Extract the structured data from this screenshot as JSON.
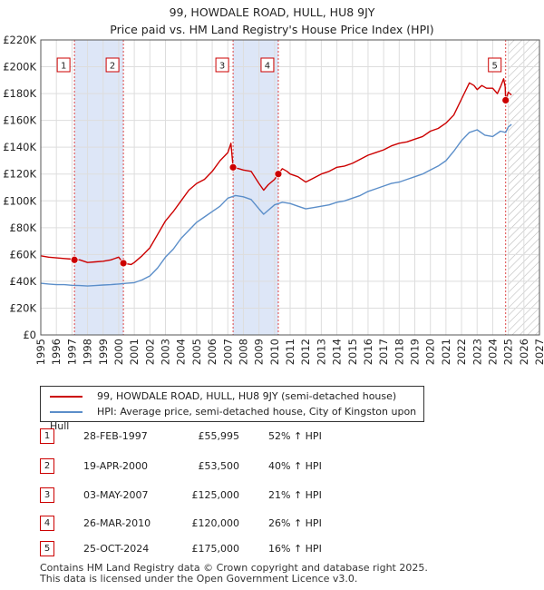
{
  "title": {
    "line1": "99, HOWDALE ROAD, HULL, HU8 9JY",
    "line2": "Price paid vs. HM Land Registry's House Price Index (HPI)"
  },
  "chart_data": {
    "type": "line",
    "title": "99, HOWDALE ROAD, HULL, HU8 9JY — Price paid vs. HM Land Registry's House Price Index (HPI)",
    "xlabel": "",
    "ylabel": "",
    "xlim": [
      1995,
      2027
    ],
    "ylim": [
      0,
      220000
    ],
    "x_ticks": [
      1995,
      1996,
      1997,
      1998,
      1999,
      2000,
      2001,
      2002,
      2003,
      2004,
      2005,
      2006,
      2007,
      2008,
      2009,
      2010,
      2011,
      2012,
      2013,
      2014,
      2015,
      2016,
      2017,
      2018,
      2019,
      2020,
      2021,
      2022,
      2023,
      2024,
      2025,
      2026,
      2027
    ],
    "y_ticks": [
      0,
      20000,
      40000,
      60000,
      80000,
      100000,
      120000,
      140000,
      160000,
      180000,
      200000,
      220000
    ],
    "y_tick_labels": [
      "£0",
      "£20K",
      "£40K",
      "£60K",
      "£80K",
      "£100K",
      "£120K",
      "£140K",
      "£160K",
      "£180K",
      "£200K",
      "£220K"
    ],
    "grid": true,
    "colors": {
      "property": "#cc0000",
      "hpi": "#5b8ec9",
      "shade": "#dde6f7",
      "marker_line": "#dd4444",
      "hatch": "#bbbbbb"
    },
    "shaded_periods": [
      [
        1997.16,
        2000.3
      ],
      [
        2007.34,
        2010.24
      ]
    ],
    "future_hatch_from": 2025.0,
    "series": [
      {
        "name": "99, HOWDALE ROAD, HULL, HU8 9JY (semi-detached house)",
        "color": "#cc0000",
        "x": [
          1995.0,
          1995.5,
          1996.0,
          1996.5,
          1997.0,
          1997.16,
          1997.5,
          1998.0,
          1998.5,
          1999.0,
          1999.5,
          2000.0,
          2000.3,
          2000.8,
          2001.0,
          2001.5,
          2002.0,
          2002.5,
          2003.0,
          2003.5,
          2004.0,
          2004.5,
          2005.0,
          2005.5,
          2006.0,
          2006.5,
          2007.0,
          2007.2,
          2007.34,
          2007.7,
          2008.0,
          2008.5,
          2009.0,
          2009.3,
          2009.6,
          2010.0,
          2010.24,
          2010.5,
          2010.8,
          2011.0,
          2011.5,
          2012.0,
          2012.5,
          2013.0,
          2013.5,
          2014.0,
          2014.5,
          2015.0,
          2015.5,
          2016.0,
          2016.5,
          2017.0,
          2017.5,
          2018.0,
          2018.5,
          2019.0,
          2019.5,
          2020.0,
          2020.5,
          2021.0,
          2021.5,
          2022.0,
          2022.5,
          2022.8,
          2023.0,
          2023.3,
          2023.6,
          2024.0,
          2024.3,
          2024.5,
          2024.7,
          2024.8,
          2024.83,
          2025.0,
          2025.2
        ],
        "values": [
          59000,
          58000,
          57500,
          57000,
          56500,
          55995,
          56000,
          54000,
          54500,
          55000,
          56000,
          58000,
          53500,
          52500,
          54000,
          59000,
          65000,
          75000,
          85000,
          92000,
          100000,
          108000,
          113000,
          116000,
          122000,
          130000,
          136000,
          143000,
          125000,
          124000,
          123000,
          122000,
          113000,
          108000,
          112000,
          116000,
          120000,
          124000,
          122000,
          120000,
          118000,
          114000,
          117000,
          120000,
          122000,
          125000,
          126000,
          128000,
          131000,
          134000,
          136000,
          138000,
          141000,
          143000,
          144000,
          146000,
          148000,
          152000,
          154000,
          158000,
          164000,
          176000,
          188000,
          186000,
          183000,
          186000,
          184000,
          184000,
          180000,
          185000,
          191000,
          185000,
          175000,
          181000,
          179000
        ]
      },
      {
        "name": "HPI: Average price, semi-detached house, City of Kingston upon Hull",
        "color": "#5b8ec9",
        "x": [
          1995.0,
          1995.5,
          1996.0,
          1996.5,
          1997.0,
          1997.5,
          1998.0,
          1998.5,
          1999.0,
          1999.5,
          2000.0,
          2000.5,
          2001.0,
          2001.5,
          2002.0,
          2002.5,
          2003.0,
          2003.5,
          2004.0,
          2004.5,
          2005.0,
          2005.5,
          2006.0,
          2006.5,
          2007.0,
          2007.5,
          2008.0,
          2008.5,
          2009.0,
          2009.3,
          2009.6,
          2010.0,
          2010.5,
          2011.0,
          2011.5,
          2012.0,
          2012.5,
          2013.0,
          2013.5,
          2014.0,
          2014.5,
          2015.0,
          2015.5,
          2016.0,
          2016.5,
          2017.0,
          2017.5,
          2018.0,
          2018.5,
          2019.0,
          2019.5,
          2020.0,
          2020.5,
          2021.0,
          2021.5,
          2022.0,
          2022.5,
          2023.0,
          2023.5,
          2024.0,
          2024.5,
          2024.83,
          2025.0,
          2025.2
        ],
        "values": [
          38500,
          38000,
          37500,
          37500,
          37000,
          36800,
          36500,
          36800,
          37200,
          37500,
          38000,
          38500,
          39000,
          41000,
          44000,
          50000,
          58000,
          64000,
          72000,
          78000,
          84000,
          88000,
          92000,
          96000,
          102000,
          104000,
          103000,
          101000,
          94000,
          90000,
          93000,
          97000,
          99000,
          98000,
          96000,
          94000,
          95000,
          96000,
          97000,
          99000,
          100000,
          102000,
          104000,
          107000,
          109000,
          111000,
          113000,
          114000,
          116000,
          118000,
          120000,
          123000,
          126000,
          130000,
          137000,
          145000,
          151000,
          153000,
          149000,
          148000,
          152000,
          151000,
          155000,
          157000
        ]
      }
    ],
    "sale_markers": [
      {
        "label": "1",
        "x": 1997.16,
        "value": 55995
      },
      {
        "label": "2",
        "x": 2000.3,
        "value": 53500
      },
      {
        "label": "3",
        "x": 2007.34,
        "value": 125000
      },
      {
        "label": "4",
        "x": 2010.24,
        "value": 120000
      },
      {
        "label": "5",
        "x": 2024.83,
        "value": 175000
      }
    ]
  },
  "legend": {
    "property_label": "99, HOWDALE ROAD, HULL, HU8 9JY (semi-detached house)",
    "hpi_label": "HPI: Average price, semi-detached house, City of Kingston upon Hull"
  },
  "sales": [
    {
      "num": "1",
      "date": "28-FEB-1997",
      "price": "£55,995",
      "hpi": "52% ↑ HPI"
    },
    {
      "num": "2",
      "date": "19-APR-2000",
      "price": "£53,500",
      "hpi": "40% ↑ HPI"
    },
    {
      "num": "3",
      "date": "03-MAY-2007",
      "price": "£125,000",
      "hpi": "21% ↑ HPI"
    },
    {
      "num": "4",
      "date": "26-MAR-2010",
      "price": "£120,000",
      "hpi": "26% ↑ HPI"
    },
    {
      "num": "5",
      "date": "25-OCT-2024",
      "price": "£175,000",
      "hpi": "16% ↑ HPI"
    }
  ],
  "footer": {
    "line1": "Contains HM Land Registry data © Crown copyright and database right 2025.",
    "line2": "This data is licensed under the Open Government Licence v3.0."
  }
}
